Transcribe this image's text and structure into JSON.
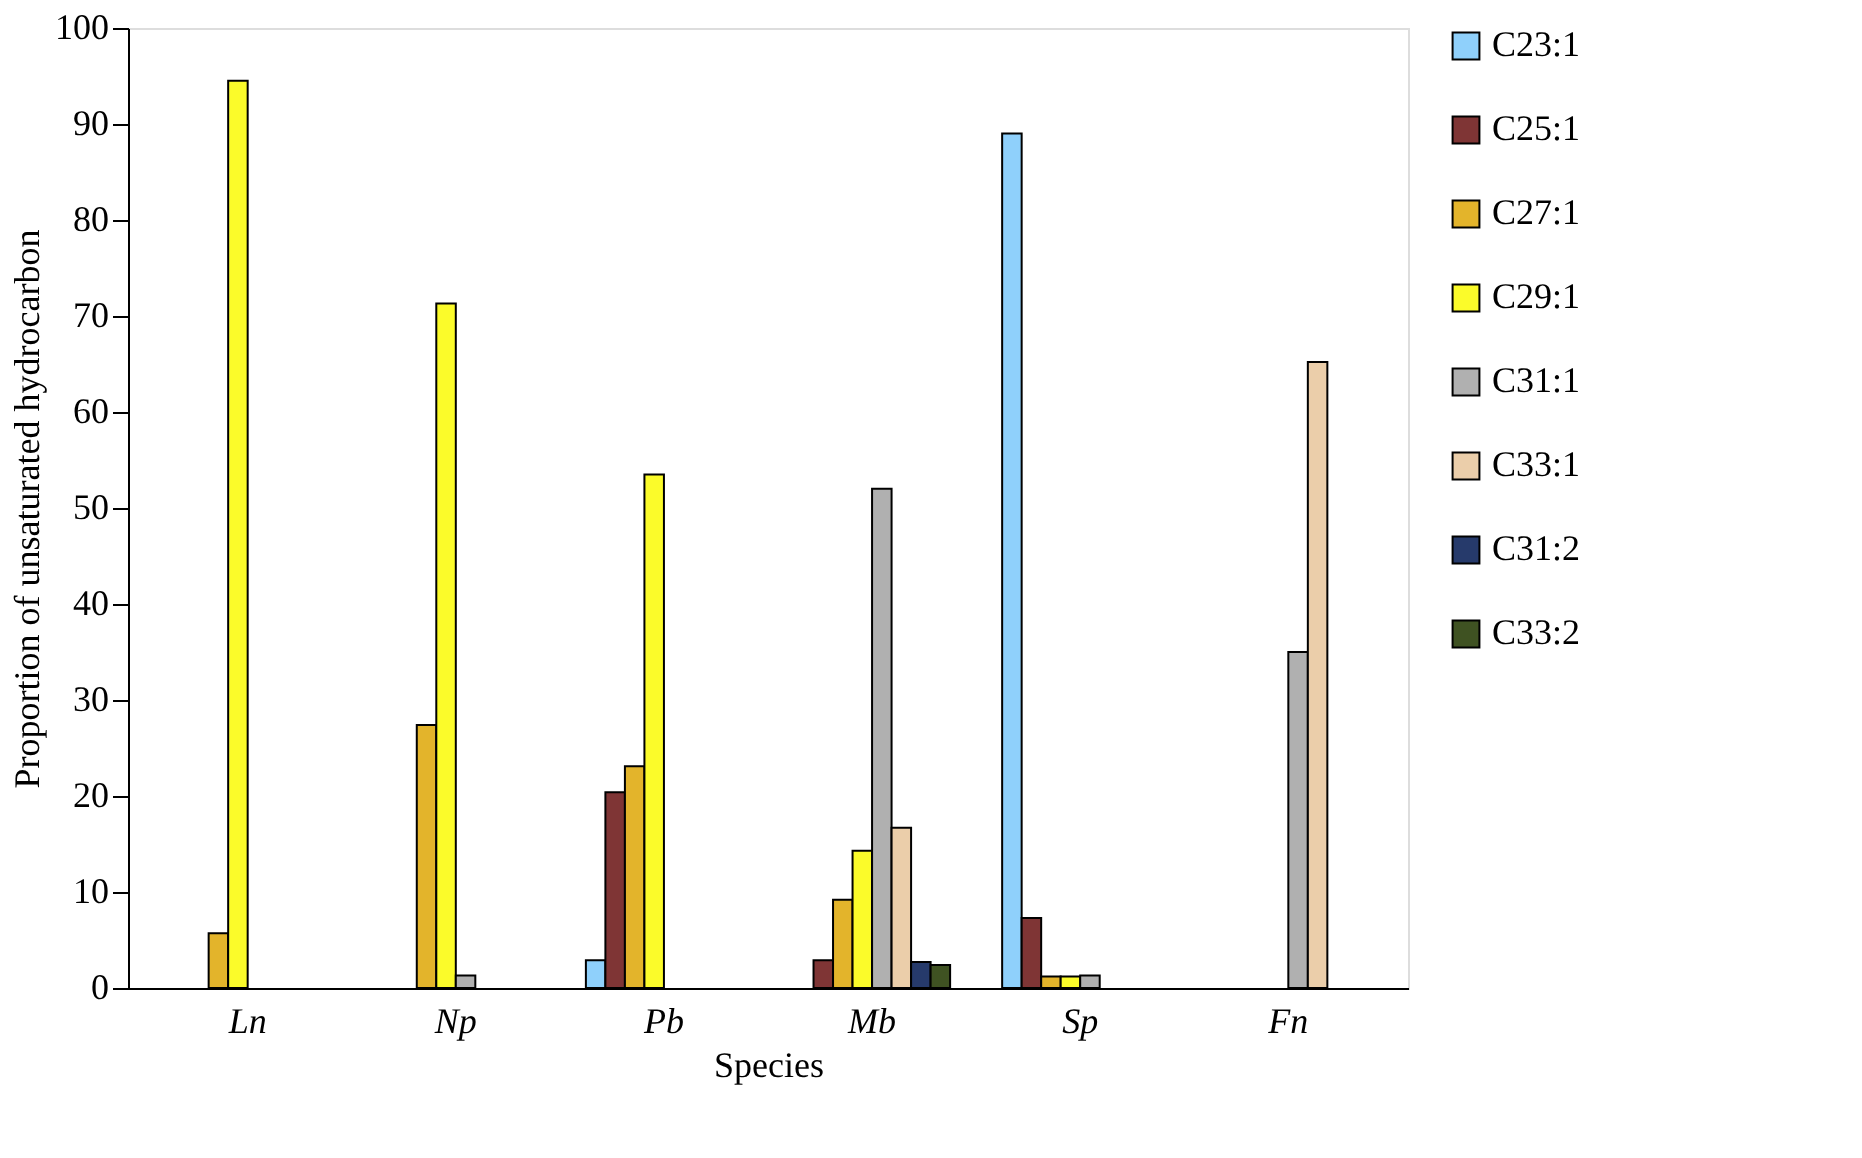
{
  "chart_data": {
    "type": "bar",
    "xlabel": "Species",
    "ylabel": "Proportion of unsaturated hydrocarbon",
    "categories": [
      "Ln",
      "Np",
      "Pb",
      "Mb",
      "Sp",
      "Fn"
    ],
    "ylim": [
      0,
      100
    ],
    "yticks": [
      0,
      10,
      20,
      30,
      40,
      50,
      60,
      70,
      80,
      90,
      100
    ],
    "grid": false,
    "legend": "right",
    "series": [
      {
        "name": "C23:1",
        "color": "#8fd0fb",
        "values": [
          null,
          null,
          2.9,
          null,
          89,
          null
        ]
      },
      {
        "name": "C25:1",
        "color": "#7f3535",
        "values": [
          null,
          null,
          20.4,
          2.9,
          7.3,
          null
        ]
      },
      {
        "name": "C27:1",
        "color": "#e3b42b",
        "values": [
          5.7,
          27.4,
          23.1,
          9.2,
          1.2,
          null
        ]
      },
      {
        "name": "C29:1",
        "color": "#fbfb2a",
        "values": [
          94.5,
          71.3,
          53.5,
          14.3,
          1.2,
          null
        ]
      },
      {
        "name": "C31:1",
        "color": "#b0b0b0",
        "values": [
          null,
          1.3,
          null,
          52,
          1.3,
          35
        ]
      },
      {
        "name": "C33:1",
        "color": "#ebceaa",
        "values": [
          null,
          null,
          null,
          16.7,
          null,
          65.2
        ]
      },
      {
        "name": "C31:2",
        "color": "#263a6b",
        "values": [
          null,
          null,
          null,
          2.7,
          null,
          null
        ]
      },
      {
        "name": "C33:2",
        "color": "#3f5222",
        "values": [
          null,
          null,
          null,
          2.4,
          null,
          null
        ]
      }
    ]
  }
}
